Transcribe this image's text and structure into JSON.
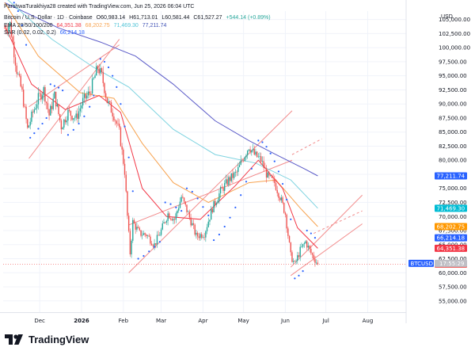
{
  "header": {
    "credit": "ParshwaTurakhiya28 created with TradingView.com, Jun 25, 2026 06:04 UTC",
    "symbol": "Bitcoin / U.S. Dollar · 1D · Coinbase",
    "ohlc": [
      {
        "label": "O",
        "value": "60,983.14"
      },
      {
        "label": "H",
        "value": "61,713.01"
      },
      {
        "label": "L",
        "value": "60,581.44"
      },
      {
        "label": "C",
        "value": "61,527.27"
      }
    ],
    "change": "+544.14 (+0.89%)",
    "ema_label": "EMA 20/50/100/200",
    "ema_values": [
      "64,351.38",
      "68,202.75",
      "71,469.30",
      "77,211.74"
    ],
    "sar_label": "SAR (0.02, 0.02, 0.2)",
    "sar_value": "66,214.18",
    "currency": "USD"
  },
  "colors": {
    "up": "#26a69a",
    "down": "#ef5350",
    "ema20": "#f23645",
    "ema50": "#f7a350",
    "ema100": "#7ed3e0",
    "ema200": "#5b5bc8",
    "sar": "#2962ff",
    "channel": "#f28c8c",
    "price_line": "#ef5350",
    "btcusd_badge": "#2962ff"
  },
  "logo": {
    "text": "TradingView",
    "icon": "tradingview-logo-icon"
  },
  "chart_data": {
    "type": "candlestick",
    "title": "Bitcoin / U.S. Dollar · 1D · Coinbase",
    "ylim": [
      53000,
      106500
    ],
    "y_ticks": [
      55000,
      57500,
      60000,
      62500,
      65000,
      67500,
      70000,
      72500,
      75000,
      77500,
      80000,
      82500,
      85000,
      87500,
      90000,
      92500,
      95000,
      97500,
      100000,
      102500,
      105000
    ],
    "y_tick_labels": [
      "55,000.00",
      "57,500.00",
      "60,000.00",
      "62,500.00",
      "65,000.00",
      "67,500.00",
      "70,000.00",
      "72,500.00",
      "75,000.00",
      "77,500.00",
      "80,000.00",
      "82,500.00",
      "85,000.00",
      "87,500.00",
      "90,000.00",
      "92,500.00",
      "95,000.00",
      "97,500.00",
      "100,000.00",
      "102,500.00",
      "105,000.00"
    ],
    "x_start": "2025-11-05",
    "x_ticks": [
      {
        "date": "2025-12-01",
        "label": "Dec",
        "bold": false
      },
      {
        "date": "2026-01-01",
        "label": "2026",
        "bold": true
      },
      {
        "date": "2026-02-01",
        "label": "Feb",
        "bold": false
      },
      {
        "date": "2026-03-01",
        "label": "Mar",
        "bold": false
      },
      {
        "date": "2026-04-01",
        "label": "Apr",
        "bold": false
      },
      {
        "date": "2026-05-01",
        "label": "May",
        "bold": false
      },
      {
        "date": "2026-06-01",
        "label": "Jun",
        "bold": false
      },
      {
        "date": "2026-07-01",
        "label": "Jul",
        "bold": false
      },
      {
        "date": "2026-08-01",
        "label": "Aug",
        "bold": false
      }
    ],
    "close_path": [
      [
        "2025-11-05",
        103500
      ],
      [
        "2025-11-09",
        104200
      ],
      [
        "2025-11-14",
        96000
      ],
      [
        "2025-11-18",
        92000
      ],
      [
        "2025-11-22",
        85500
      ],
      [
        "2025-11-26",
        88500
      ],
      [
        "2025-11-30",
        91000
      ],
      [
        "2025-12-04",
        92500
      ],
      [
        "2025-12-08",
        88000
      ],
      [
        "2025-12-12",
        91500
      ],
      [
        "2025-12-17",
        86000
      ],
      [
        "2025-12-22",
        88500
      ],
      [
        "2025-12-28",
        87500
      ],
      [
        "2026-01-02",
        90500
      ],
      [
        "2026-01-07",
        92000
      ],
      [
        "2026-01-13",
        96500
      ],
      [
        "2026-01-16",
        95000
      ],
      [
        "2026-01-20",
        90500
      ],
      [
        "2026-01-25",
        88000
      ],
      [
        "2026-01-29",
        85000
      ],
      [
        "2026-02-02",
        78000
      ],
      [
        "2026-02-04",
        70000
      ],
      [
        "2026-02-06",
        63500
      ],
      [
        "2026-02-08",
        69000
      ],
      [
        "2026-02-13",
        67000
      ],
      [
        "2026-02-18",
        66800
      ],
      [
        "2026-02-24",
        65000
      ],
      [
        "2026-03-01",
        67500
      ],
      [
        "2026-03-06",
        70500
      ],
      [
        "2026-03-11",
        69500
      ],
      [
        "2026-03-16",
        73500
      ],
      [
        "2026-03-21",
        70500
      ],
      [
        "2026-03-27",
        66500
      ],
      [
        "2026-04-02",
        67000
      ],
      [
        "2026-04-08",
        71500
      ],
      [
        "2026-04-14",
        74500
      ],
      [
        "2026-04-20",
        76500
      ],
      [
        "2026-04-26",
        77800
      ],
      [
        "2026-05-01",
        80500
      ],
      [
        "2026-05-05",
        82500
      ],
      [
        "2026-05-09",
        81000
      ],
      [
        "2026-05-14",
        80000
      ],
      [
        "2026-05-19",
        77000
      ],
      [
        "2026-05-24",
        76000
      ],
      [
        "2026-05-28",
        73500
      ],
      [
        "2026-06-01",
        70500
      ],
      [
        "2026-06-05",
        63000
      ],
      [
        "2026-06-08",
        61500
      ],
      [
        "2026-06-12",
        64000
      ],
      [
        "2026-06-16",
        65500
      ],
      [
        "2026-06-20",
        63500
      ],
      [
        "2026-06-25",
        61527
      ]
    ],
    "ema20": [
      [
        "2025-11-05",
        104000
      ],
      [
        "2025-11-25",
        93500
      ],
      [
        "2025-12-20",
        89000
      ],
      [
        "2026-01-14",
        91500
      ],
      [
        "2026-01-30",
        88500
      ],
      [
        "2026-02-15",
        75000
      ],
      [
        "2026-03-05",
        70000
      ],
      [
        "2026-03-30",
        69500
      ],
      [
        "2026-04-25",
        75500
      ],
      [
        "2026-05-12",
        80000
      ],
      [
        "2026-05-30",
        75000
      ],
      [
        "2026-06-10",
        68000
      ],
      [
        "2026-06-25",
        64351
      ]
    ],
    "ema50": [
      [
        "2025-11-05",
        108000
      ],
      [
        "2025-11-30",
        98500
      ],
      [
        "2025-12-31",
        92000
      ],
      [
        "2026-01-25",
        91000
      ],
      [
        "2026-02-15",
        83000
      ],
      [
        "2026-03-10",
        76000
      ],
      [
        "2026-04-05",
        72500
      ],
      [
        "2026-05-05",
        76000
      ],
      [
        "2026-05-25",
        76500
      ],
      [
        "2026-06-12",
        71500
      ],
      [
        "2026-06-25",
        68203
      ]
    ],
    "ema100": [
      [
        "2025-11-05",
        109000
      ],
      [
        "2025-12-10",
        101500
      ],
      [
        "2026-01-10",
        96500
      ],
      [
        "2026-02-05",
        93000
      ],
      [
        "2026-03-10",
        85500
      ],
      [
        "2026-04-10",
        81000
      ],
      [
        "2026-05-10",
        79500
      ],
      [
        "2026-06-05",
        76500
      ],
      [
        "2026-06-25",
        71469
      ]
    ],
    "ema200": [
      [
        "2025-11-05",
        108000
      ],
      [
        "2025-12-15",
        103500
      ],
      [
        "2026-01-15",
        101000
      ],
      [
        "2026-02-10",
        98500
      ],
      [
        "2026-03-10",
        93500
      ],
      [
        "2026-04-10",
        87000
      ],
      [
        "2026-05-05",
        83500
      ],
      [
        "2026-05-25",
        81000
      ],
      [
        "2026-06-15",
        78500
      ],
      [
        "2026-06-25",
        77212
      ]
    ],
    "sar": [
      [
        "2025-11-12",
        108000
      ],
      [
        "2025-11-15",
        106500
      ],
      [
        "2025-11-18",
        104000
      ],
      [
        "2025-11-21",
        100500
      ],
      [
        "2025-11-24",
        84000
      ],
      [
        "2025-11-27",
        84800
      ],
      [
        "2025-11-30",
        85600
      ],
      [
        "2025-12-03",
        86500
      ],
      [
        "2025-12-06",
        87500
      ],
      [
        "2025-12-09",
        93500
      ],
      [
        "2025-12-12",
        93200
      ],
      [
        "2025-12-15",
        92900
      ],
      [
        "2025-12-18",
        92400
      ],
      [
        "2025-12-22",
        84500
      ],
      [
        "2025-12-26",
        85400
      ],
      [
        "2025-12-30",
        86500
      ],
      [
        "2026-01-03",
        87800
      ],
      [
        "2026-01-07",
        89500
      ],
      [
        "2026-01-10",
        91500
      ],
      [
        "2026-01-15",
        98000
      ],
      [
        "2026-01-18",
        97500
      ],
      [
        "2026-01-21",
        96500
      ],
      [
        "2026-01-24",
        95000
      ],
      [
        "2026-01-27",
        93000
      ],
      [
        "2026-01-30",
        90000
      ],
      [
        "2026-02-02",
        86000
      ],
      [
        "2026-02-05",
        80500
      ],
      [
        "2026-02-08",
        74500
      ],
      [
        "2026-02-12",
        62500
      ],
      [
        "2026-02-16",
        63000
      ],
      [
        "2026-02-20",
        63800
      ],
      [
        "2026-02-24",
        64600
      ],
      [
        "2026-02-28",
        65500
      ],
      [
        "2026-03-04",
        72500
      ],
      [
        "2026-03-08",
        72200
      ],
      [
        "2026-03-12",
        71600
      ],
      [
        "2026-03-16",
        71000
      ],
      [
        "2026-03-20",
        75000
      ],
      [
        "2026-03-24",
        74400
      ],
      [
        "2026-03-28",
        73200
      ],
      [
        "2026-04-01",
        71700
      ],
      [
        "2026-04-05",
        70200
      ],
      [
        "2026-04-09",
        65800
      ],
      [
        "2026-04-13",
        66800
      ],
      [
        "2026-04-17",
        68200
      ],
      [
        "2026-04-21",
        69800
      ],
      [
        "2026-04-25",
        71600
      ],
      [
        "2026-04-29",
        73800
      ],
      [
        "2026-05-03",
        76200
      ],
      [
        "2026-05-07",
        78500
      ],
      [
        "2026-05-12",
        83500
      ],
      [
        "2026-05-15",
        83200
      ],
      [
        "2026-05-18",
        82400
      ],
      [
        "2026-05-21",
        81200
      ],
      [
        "2026-05-24",
        79800
      ],
      [
        "2026-05-27",
        78000
      ],
      [
        "2026-05-30",
        75800
      ],
      [
        "2026-06-02",
        73000
      ],
      [
        "2026-06-05",
        69500
      ],
      [
        "2026-06-08",
        59000
      ],
      [
        "2026-06-11",
        59500
      ],
      [
        "2026-06-14",
        60300
      ],
      [
        "2026-06-17",
        67500
      ],
      [
        "2026-06-20",
        67000
      ],
      [
        "2026-06-23",
        66214
      ]
    ],
    "channels": [
      {
        "name": "channel-nov-jan",
        "lines": [
          [
            [
              "2025-11-23",
              80300
            ],
            [
              "2026-01-29",
              101500
            ]
          ],
          [
            [
              "2025-11-23",
              89500
            ],
            [
              "2026-01-29",
              100500
            ]
          ]
        ],
        "style": "solid"
      },
      {
        "name": "channel-feb-may",
        "lines": [
          [
            [
              "2026-02-05",
              60000
            ],
            [
              "2026-06-06",
              88800
            ]
          ],
          [
            [
              "2026-02-05",
              68500
            ],
            [
              "2026-06-06",
              80000
            ]
          ]
        ],
        "style": "solid"
      },
      {
        "name": "channel-jun-jul",
        "lines": [
          [
            [
              "2026-06-05",
              61000
            ],
            [
              "2026-07-28",
              73800
            ]
          ],
          [
            [
              "2026-06-05",
              59500
            ],
            [
              "2026-07-28",
              68700
            ]
          ]
        ],
        "style": "solid"
      }
    ],
    "dashed_extensions": [
      {
        "name": "dashed-ext-jan",
        "from": [
          "2026-01-29",
          95000
        ],
        "to": [
          "2026-01-29",
          95000
        ]
      },
      {
        "name": "dashed-ext-jun",
        "from": [
          "2026-06-06",
          81000
        ],
        "to": [
          "2026-06-28",
          83800
        ]
      },
      {
        "name": "dashed-ext-jul",
        "from": [
          "2026-06-22",
          67000
        ],
        "to": [
          "2026-07-28",
          71000
        ]
      }
    ],
    "price_badges": [
      {
        "name": "ema200-badge",
        "value": 77211.74,
        "label": "77,211.74",
        "color": "#2962ff"
      },
      {
        "name": "ema100-badge",
        "value": 71469.3,
        "label": "71,469.30",
        "color": "#00bcd4"
      },
      {
        "name": "ema50-badge",
        "value": 68202.75,
        "label": "68,202.75",
        "color": "#ff9800"
      },
      {
        "name": "sar-badge",
        "value": 66214.18,
        "label": "66,214.18",
        "color": "#2962ff"
      },
      {
        "name": "ema20-badge",
        "value": 64351.38,
        "label": "64,351.38",
        "color": "#f23645"
      },
      {
        "name": "price-badge",
        "value": 61527.27,
        "label": "61,527.27",
        "color": "#ef5350"
      }
    ],
    "symbol_badge": {
      "label": "BTCUSD",
      "countdown": "17:55:29"
    }
  }
}
